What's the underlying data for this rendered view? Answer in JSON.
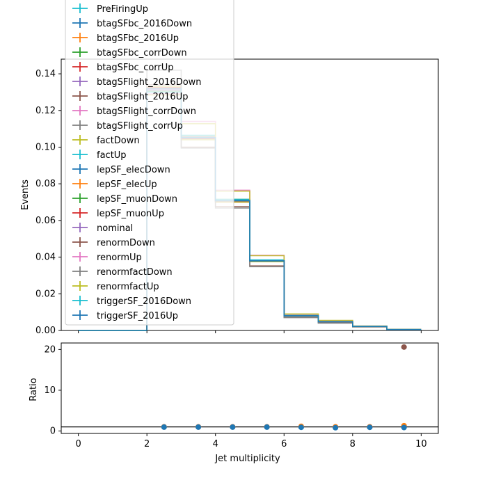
{
  "chart_data": [
    {
      "type": "line",
      "xlabel": "",
      "ylabel": "Events",
      "xlim": [
        -0.5,
        10.5
      ],
      "ylim": [
        0.0,
        0.148
      ],
      "bin_edges": [
        0,
        1,
        2,
        3,
        4,
        5,
        6,
        7,
        8,
        9,
        10
      ],
      "x_ticks": [
        0,
        2,
        4,
        6,
        8,
        10
      ],
      "y_ticks": [
        0.0,
        0.02,
        0.04,
        0.06,
        0.08,
        0.1,
        0.12,
        0.14
      ],
      "y_tick_labels": [
        "0.00",
        "0.02",
        "0.04",
        "0.06",
        "0.08",
        "0.10",
        "0.12",
        "0.14"
      ],
      "legend_position": "upper-left",
      "series": [
        {
          "name": "PreFiringUp",
          "color": "#17becf",
          "values": [
            0,
            0,
            0.1318,
            0.1052,
            0.0708,
            0.038,
            0.008,
            0.0048,
            0.0022,
            0.0005
          ]
        },
        {
          "name": "btagSFbc_2016Down",
          "color": "#1f77b4",
          "values": [
            0,
            0,
            0.131,
            0.1055,
            0.0712,
            0.0381,
            0.008,
            0.0048,
            0.0022,
            0.0005
          ]
        },
        {
          "name": "btagSFbc_2016Up",
          "color": "#ff7f0e",
          "values": [
            0,
            0,
            0.1322,
            0.1048,
            0.0705,
            0.0379,
            0.008,
            0.0048,
            0.0022,
            0.0005
          ]
        },
        {
          "name": "btagSFbc_corrDown",
          "color": "#2ca02c",
          "values": [
            0,
            0,
            0.1305,
            0.106,
            0.0715,
            0.0382,
            0.008,
            0.0048,
            0.0022,
            0.0005
          ]
        },
        {
          "name": "btagSFbc_corrUp",
          "color": "#d62728",
          "values": [
            0,
            0,
            0.1325,
            0.1045,
            0.07,
            0.0378,
            0.008,
            0.0048,
            0.0022,
            0.0005
          ]
        },
        {
          "name": "btagSFlight_2016Down",
          "color": "#9467bd",
          "values": [
            0,
            0,
            0.1315,
            0.1052,
            0.0708,
            0.038,
            0.008,
            0.0048,
            0.0022,
            0.0005
          ]
        },
        {
          "name": "btagSFlight_2016Up",
          "color": "#8c564b",
          "values": [
            0,
            0,
            0.1318,
            0.105,
            0.0708,
            0.038,
            0.008,
            0.0048,
            0.0022,
            0.0005
          ]
        },
        {
          "name": "btagSFlight_corrDown",
          "color": "#e377c2",
          "values": [
            0,
            0,
            0.1312,
            0.1055,
            0.071,
            0.0381,
            0.008,
            0.0048,
            0.0022,
            0.0005
          ]
        },
        {
          "name": "btagSFlight_corrUp",
          "color": "#7f7f7f",
          "values": [
            0,
            0,
            0.132,
            0.105,
            0.0707,
            0.038,
            0.008,
            0.0048,
            0.0022,
            0.0005
          ]
        },
        {
          "name": "factDown",
          "color": "#bcbd22",
          "values": [
            0,
            0,
            0.133,
            0.104,
            0.07,
            0.0375,
            0.0078,
            0.0047,
            0.0022,
            0.0005
          ]
        },
        {
          "name": "factUp",
          "color": "#17becf",
          "values": [
            0,
            0,
            0.13,
            0.1065,
            0.0715,
            0.0385,
            0.0082,
            0.0049,
            0.0022,
            0.0005
          ]
        },
        {
          "name": "lepSF_elecDown",
          "color": "#1f77b4",
          "values": [
            0,
            0,
            0.1318,
            0.1052,
            0.0708,
            0.038,
            0.008,
            0.0048,
            0.0022,
            0.0005
          ]
        },
        {
          "name": "lepSF_elecUp",
          "color": "#ff7f0e",
          "values": [
            0,
            0,
            0.1318,
            0.1052,
            0.0708,
            0.038,
            0.008,
            0.0048,
            0.0022,
            0.0005
          ]
        },
        {
          "name": "lepSF_muonDown",
          "color": "#2ca02c",
          "values": [
            0,
            0,
            0.1318,
            0.1052,
            0.0708,
            0.038,
            0.008,
            0.0048,
            0.0022,
            0.0005
          ]
        },
        {
          "name": "lepSF_muonUp",
          "color": "#d62728",
          "values": [
            0,
            0,
            0.1318,
            0.1052,
            0.0708,
            0.038,
            0.008,
            0.0048,
            0.0022,
            0.0005
          ]
        },
        {
          "name": "nominal",
          "color": "#9467bd",
          "values": [
            0,
            0,
            0.1318,
            0.1052,
            0.0708,
            0.038,
            0.008,
            0.0048,
            0.0022,
            0.0005
          ]
        },
        {
          "name": "renormDown",
          "color": "#8c564b",
          "values": [
            0,
            0,
            0.134,
            0.1,
            0.0675,
            0.0352,
            0.0072,
            0.0042,
            0.002,
            0.0004
          ]
        },
        {
          "name": "renormUp",
          "color": "#e377c2",
          "values": [
            0,
            0,
            0.129,
            0.114,
            0.0765,
            0.041,
            0.0088,
            0.0053,
            0.0024,
            0.0006
          ]
        },
        {
          "name": "renormfactDown",
          "color": "#7f7f7f",
          "values": [
            0,
            0,
            0.142,
            0.0995,
            0.0668,
            0.0348,
            0.007,
            0.004,
            0.0019,
            0.0004
          ]
        },
        {
          "name": "renormfactUp",
          "color": "#bcbd22",
          "values": [
            0,
            0,
            0.1285,
            0.1128,
            0.076,
            0.0408,
            0.009,
            0.0055,
            0.0024,
            0.0006
          ]
        },
        {
          "name": "triggerSF_2016Down",
          "color": "#17becf",
          "values": [
            0,
            0,
            0.1318,
            0.1052,
            0.0708,
            0.038,
            0.008,
            0.0048,
            0.0022,
            0.0005
          ]
        },
        {
          "name": "triggerSF_2016Up",
          "color": "#1f77b4",
          "values": [
            0,
            0,
            0.1318,
            0.1052,
            0.0708,
            0.038,
            0.008,
            0.0048,
            0.0022,
            0.0005
          ]
        }
      ]
    },
    {
      "type": "scatter",
      "xlabel": "Jet multiplicity",
      "ylabel": "Ratio",
      "xlim": [
        -0.5,
        10.5
      ],
      "ylim": [
        -0.6,
        21.6
      ],
      "x_ticks": [
        0,
        2,
        4,
        6,
        8,
        10
      ],
      "y_ticks": [
        0,
        10,
        20
      ],
      "reference_line": 1,
      "series": [
        {
          "name": "",
          "color": "#8c564b",
          "x": [
            2.5,
            3.5,
            4.5,
            5.5,
            6.5,
            7.5,
            8.5,
            9.5
          ],
          "y": [
            1.0,
            1.0,
            1.0,
            1.0,
            1.0,
            1.0,
            1.0,
            20.6
          ]
        },
        {
          "name": "",
          "color": "#ff7f0e",
          "x": [
            2.5,
            3.5,
            4.5,
            5.5,
            6.5,
            7.5,
            8.5,
            9.5
          ],
          "y": [
            1.0,
            1.0,
            1.0,
            1.0,
            1.15,
            1.0,
            1.0,
            1.3
          ]
        },
        {
          "name": "",
          "color": "#1f77b4",
          "x": [
            2.5,
            3.5,
            4.5,
            5.5,
            6.5,
            7.5,
            8.5,
            9.5
          ],
          "y": [
            0.95,
            0.95,
            0.95,
            0.95,
            0.9,
            0.8,
            0.9,
            0.85
          ]
        }
      ]
    }
  ]
}
